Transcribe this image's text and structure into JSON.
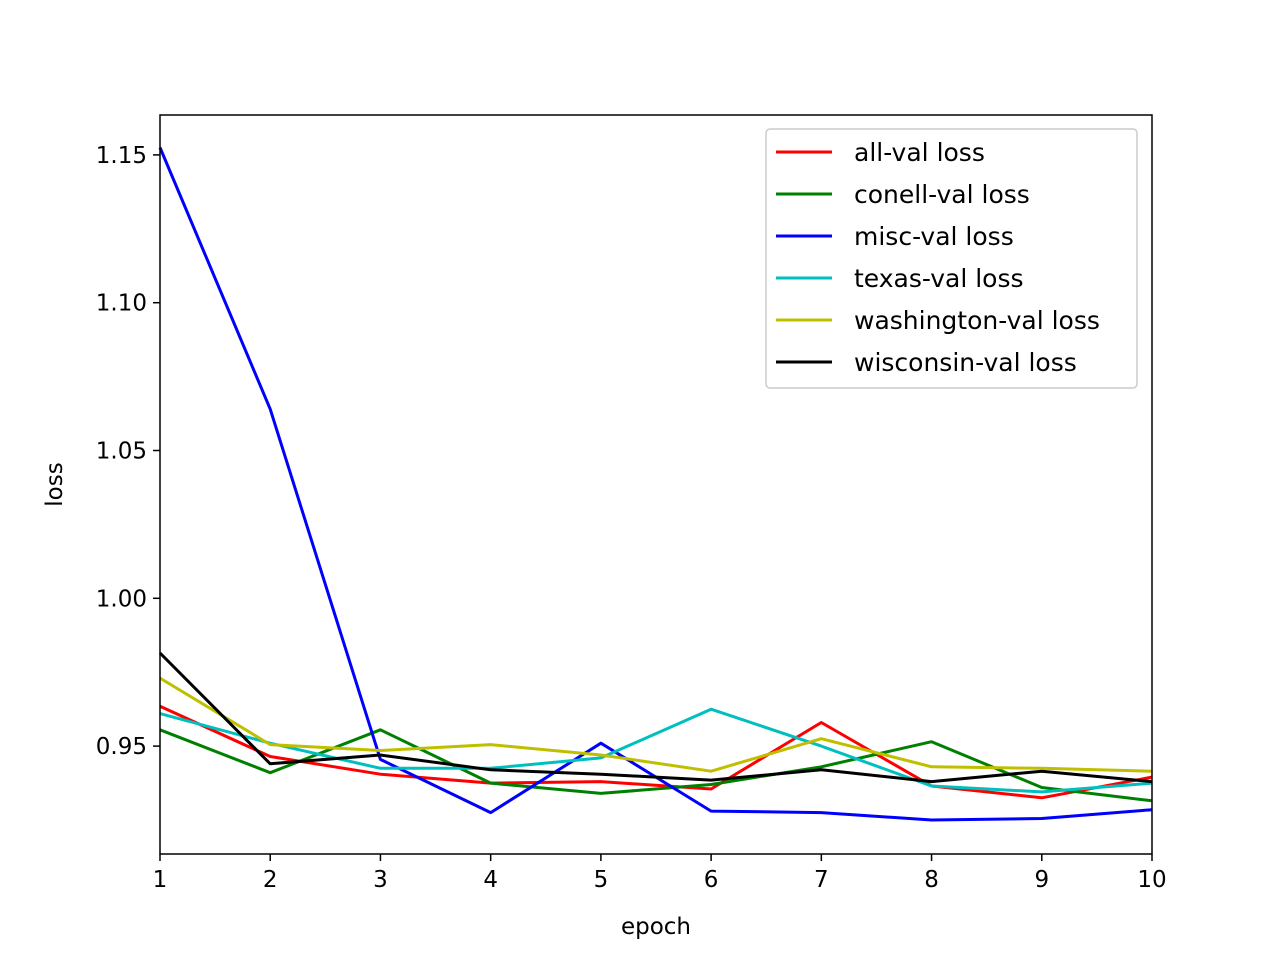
{
  "chart_data": {
    "type": "line",
    "xlabel": "epoch",
    "ylabel": "loss",
    "x": [
      1,
      2,
      3,
      4,
      5,
      6,
      7,
      8,
      9,
      10
    ],
    "xlim": [
      1,
      10
    ],
    "ylim": [
      0.9135,
      1.1635
    ],
    "xticks": [
      "1",
      "2",
      "3",
      "4",
      "5",
      "6",
      "7",
      "8",
      "9",
      "10"
    ],
    "yticks": [
      {
        "value": 0.95,
        "label": "0.95"
      },
      {
        "value": 1.0,
        "label": "1.00"
      },
      {
        "value": 1.05,
        "label": "1.05"
      },
      {
        "value": 1.1,
        "label": "1.10"
      },
      {
        "value": 1.15,
        "label": "1.15"
      }
    ],
    "grid": false,
    "legend_position": "top-right",
    "series": [
      {
        "name": "all-val loss",
        "color": "#ff0000",
        "values": [
          0.9635,
          0.9465,
          0.9405,
          0.9375,
          0.938,
          0.9355,
          0.958,
          0.9365,
          0.9325,
          0.9395
        ]
      },
      {
        "name": "conell-val loss",
        "color": "#008000",
        "values": [
          0.9555,
          0.941,
          0.9555,
          0.9375,
          0.934,
          0.937,
          0.943,
          0.9515,
          0.936,
          0.9315
        ]
      },
      {
        "name": "misc-val loss",
        "color": "#0000ff",
        "values": [
          1.1525,
          1.064,
          0.9455,
          0.9275,
          0.951,
          0.928,
          0.9275,
          0.925,
          0.9255,
          0.9285
        ]
      },
      {
        "name": "texas-val loss",
        "color": "#00bfbf",
        "values": [
          0.961,
          0.951,
          0.9425,
          0.9425,
          0.946,
          0.9625,
          0.95,
          0.9365,
          0.9345,
          0.9375
        ]
      },
      {
        "name": "washington-val loss",
        "color": "#bfbf00",
        "values": [
          0.973,
          0.9505,
          0.9485,
          0.9505,
          0.947,
          0.9415,
          0.9525,
          0.943,
          0.9425,
          0.9415
        ]
      },
      {
        "name": "wisconsin-val loss",
        "color": "#000000",
        "values": [
          0.9815,
          0.944,
          0.947,
          0.942,
          0.9405,
          0.9385,
          0.942,
          0.938,
          0.9415,
          0.938
        ]
      }
    ]
  }
}
